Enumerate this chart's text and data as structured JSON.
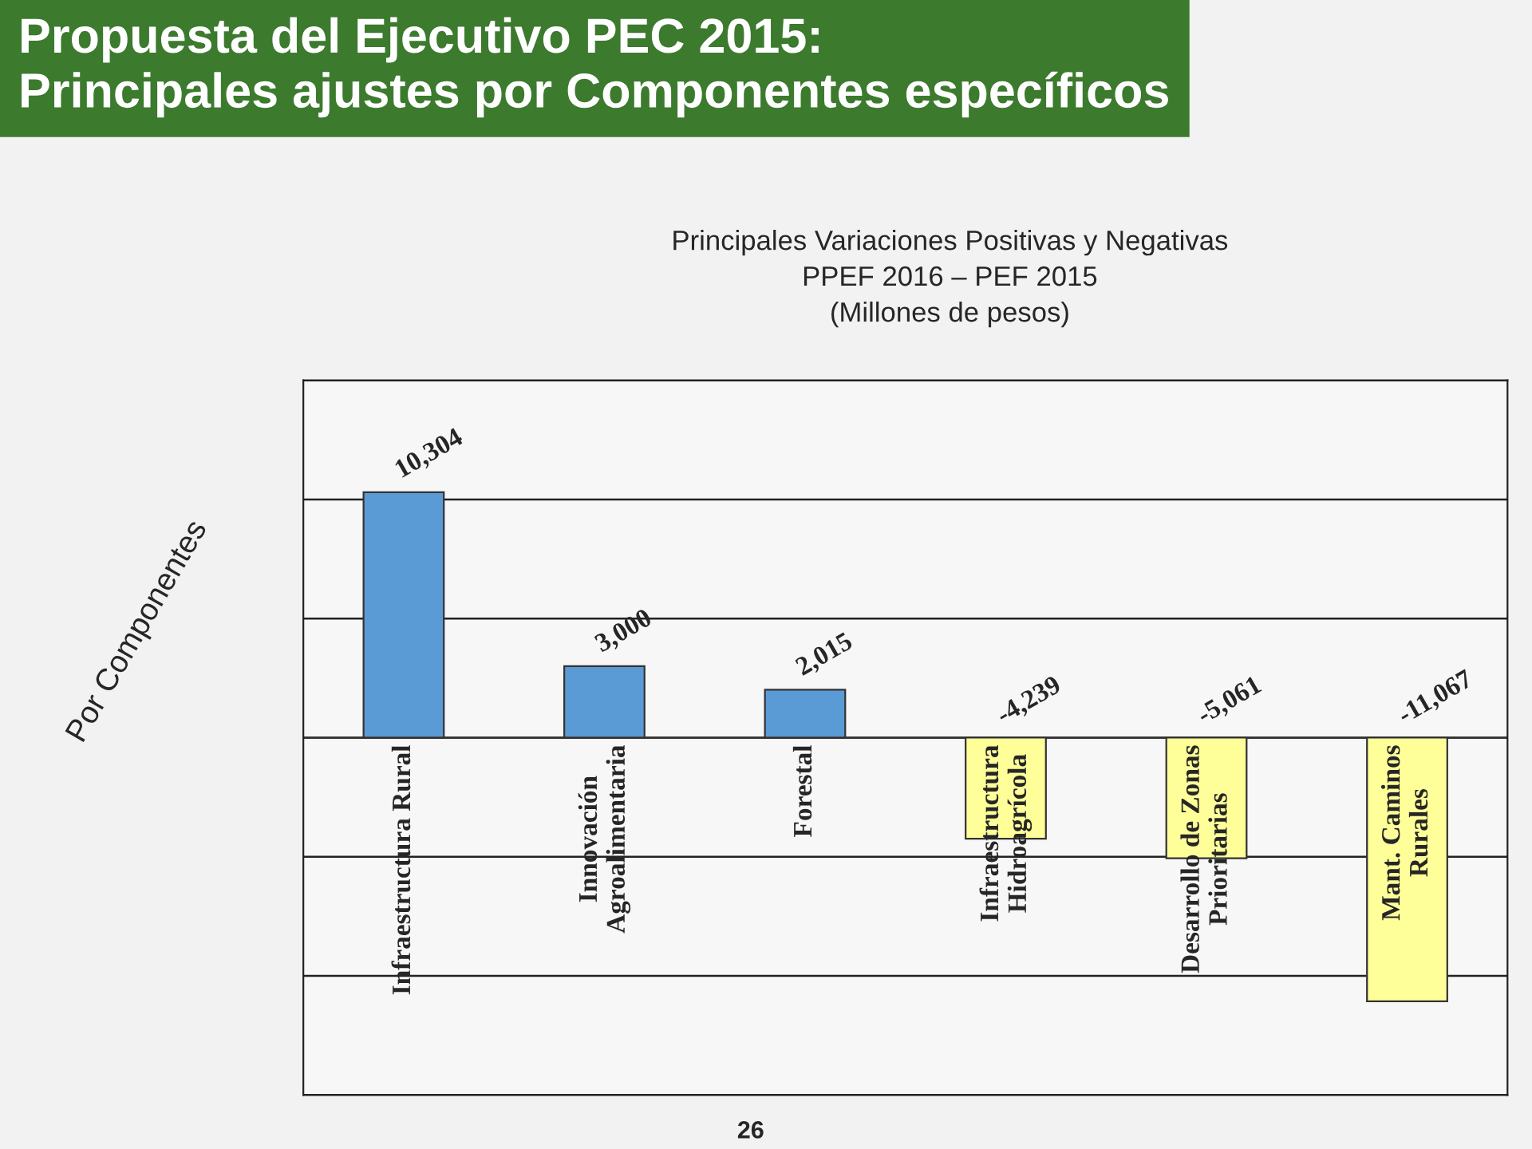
{
  "chart_data": {
    "type": "bar",
    "title": "Propuesta del Ejecutivo PEC 2015:\nPrincipales ajustes por Componentes específicos",
    "subtitle": "Principales Variaciones Positivas y Negativas\nPPEF 2016 – PEF 2015\n(Millones de pesos)",
    "ylabel": "Por Componentes",
    "categories": [
      "Infraestructura Rural",
      "Innovación\nAgroalimentaria",
      "Forestal",
      "Infraestructura\nHidroagrícola",
      "Desarrollo de Zonas\nPrioritarias",
      "Mant. Caminos\nRurales"
    ],
    "values": [
      10304,
      3000,
      2015,
      -4239,
      -5061,
      -11067
    ],
    "colors": [
      "#5b9bd5",
      "#5b9bd5",
      "#5b9bd5",
      "#ffff99",
      "#ffff99",
      "#ffff99"
    ],
    "value_labels": [
      "10,304",
      "3,000",
      "2,015",
      "-4,239",
      "-5,061",
      "-11,067"
    ],
    "ylim": [
      -15000,
      15000
    ],
    "yticks": [
      {
        "value": -15000,
        "label": null
      },
      {
        "value": -10000,
        "label": null
      },
      {
        "value": -5000,
        "label": null
      },
      {
        "value": 0,
        "label": null
      },
      {
        "value": 5000,
        "label": null
      },
      {
        "value": 10000,
        "label": null
      },
      {
        "value": 15000,
        "label": null
      }
    ],
    "grid": "y",
    "annotations": [
      "26"
    ]
  }
}
